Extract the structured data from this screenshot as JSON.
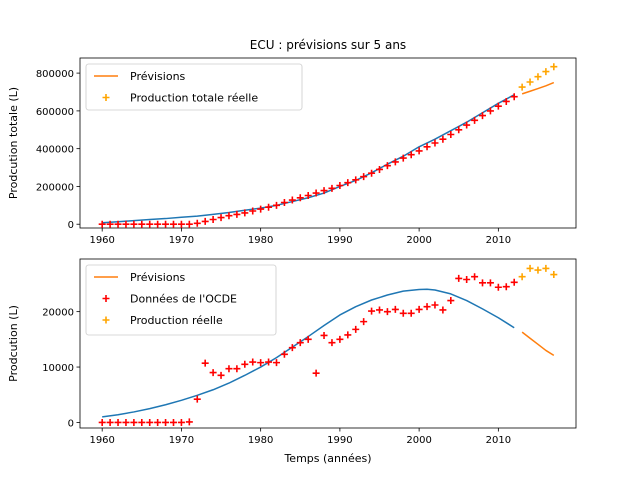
{
  "chart_data": [
    {
      "type": "line",
      "title": "ECU : prévisions sur 5 ans",
      "xlabel": "",
      "ylabel": "Prodcution totale (L)",
      "xlim": [
        1957.2,
        2019.8
      ],
      "ylim": [
        -20000,
        880000
      ],
      "xticks": [
        1960,
        1970,
        1980,
        1990,
        2000,
        2010
      ],
      "xtick_labels": [
        "1960",
        "1970",
        "1980",
        "1990",
        "2000",
        "2010"
      ],
      "yticks": [
        0,
        200000,
        400000,
        600000,
        800000
      ],
      "ytick_labels": [
        "0",
        "200000",
        "400000",
        "600000",
        "800000"
      ],
      "legend_position": "upper-left",
      "series": [
        {
          "name": "",
          "kind": "line",
          "color": "#1f77b4",
          "x": [
            1960,
            1962,
            1964,
            1966,
            1968,
            1970,
            1972,
            1974,
            1976,
            1978,
            1980,
            1982,
            1984,
            1986,
            1988,
            1990,
            1992,
            1994,
            1996,
            1998,
            2000,
            2002,
            2004,
            2006,
            2008,
            2010,
            2012
          ],
          "y": [
            8000,
            13000,
            19000,
            25000,
            30000,
            37000,
            43000,
            52000,
            62000,
            74000,
            85000,
            100000,
            120000,
            140000,
            165000,
            200000,
            232000,
            272000,
            318000,
            360000,
            410000,
            450000,
            495000,
            540000,
            590000,
            640000,
            685000
          ]
        },
        {
          "name": "Prévisions",
          "kind": "line",
          "color": "#ff7f0e",
          "x": [
            2013,
            2014,
            2015,
            2016,
            2017
          ],
          "y": [
            690000,
            704000,
            718000,
            733000,
            750000
          ]
        },
        {
          "name": "",
          "kind": "marker",
          "color": "#ff0000",
          "x": [
            1960,
            1961,
            1962,
            1963,
            1964,
            1965,
            1966,
            1967,
            1968,
            1969,
            1970,
            1971,
            1972,
            1973,
            1974,
            1975,
            1976,
            1977,
            1978,
            1979,
            1980,
            1981,
            1982,
            1983,
            1984,
            1985,
            1986,
            1987,
            1988,
            1989,
            1990,
            1991,
            1992,
            1993,
            1994,
            1995,
            1996,
            1997,
            1998,
            1999,
            2000,
            2001,
            2002,
            2003,
            2004,
            2005,
            2006,
            2007,
            2008,
            2009,
            2010,
            2011,
            2012
          ],
          "y": [
            0,
            0,
            0,
            0,
            0,
            0,
            0,
            0,
            0,
            0,
            0,
            0,
            5000,
            15000,
            25000,
            35000,
            45000,
            52000,
            60000,
            70000,
            80000,
            90000,
            100000,
            115000,
            128000,
            140000,
            152000,
            165000,
            178000,
            190000,
            205000,
            220000,
            235000,
            252000,
            270000,
            290000,
            310000,
            330000,
            350000,
            368000,
            388000,
            410000,
            430000,
            450000,
            475000,
            500000,
            525000,
            550000,
            575000,
            600000,
            625000,
            650000,
            675000
          ]
        },
        {
          "name": "Production totale réelle",
          "kind": "marker",
          "color": "#ffa500",
          "x": [
            2013,
            2014,
            2015,
            2016,
            2017
          ],
          "y": [
            726000,
            753000,
            781000,
            808000,
            834000
          ]
        }
      ]
    },
    {
      "type": "line",
      "title": "",
      "xlabel": "Temps (années)",
      "ylabel": "Prodcution (L)",
      "xlim": [
        1957.2,
        2019.8
      ],
      "ylim": [
        -1000,
        29500
      ],
      "xticks": [
        1960,
        1970,
        1980,
        1990,
        2000,
        2010
      ],
      "xtick_labels": [
        "1960",
        "1970",
        "1980",
        "1990",
        "2000",
        "2010"
      ],
      "yticks": [
        0,
        10000,
        20000
      ],
      "ytick_labels": [
        "0",
        "10000",
        "20000"
      ],
      "legend_position": "upper-left",
      "series": [
        {
          "name": "",
          "kind": "line",
          "color": "#1f77b4",
          "x": [
            1960,
            1962,
            1964,
            1966,
            1968,
            1970,
            1972,
            1974,
            1976,
            1978,
            1980,
            1982,
            1984,
            1986,
            1988,
            1990,
            1992,
            1994,
            1996,
            1998,
            2000,
            2001,
            2002,
            2004,
            2006,
            2008,
            2010,
            2012
          ],
          "y": [
            1000,
            1400,
            1900,
            2500,
            3200,
            4000,
            4900,
            5900,
            7100,
            8500,
            10000,
            11700,
            13600,
            15500,
            17500,
            19400,
            20900,
            22100,
            23000,
            23700,
            24000,
            24050,
            23900,
            23200,
            22000,
            20500,
            18900,
            17100
          ]
        },
        {
          "name": "Prévisions",
          "kind": "line",
          "color": "#ff7f0e",
          "x": [
            2013,
            2014,
            2015,
            2016,
            2017
          ],
          "y": [
            16300,
            15200,
            14100,
            13000,
            12100
          ]
        },
        {
          "name": "Données de l'OCDE",
          "kind": "marker",
          "color": "#ff0000",
          "x": [
            1960,
            1961,
            1962,
            1963,
            1964,
            1965,
            1966,
            1967,
            1968,
            1969,
            1970,
            1971,
            1972,
            1973,
            1974,
            1975,
            1976,
            1977,
            1978,
            1979,
            1980,
            1981,
            1982,
            1983,
            1984,
            1985,
            1986,
            1987,
            1988,
            1989,
            1990,
            1991,
            1992,
            1993,
            1994,
            1995,
            1996,
            1997,
            1998,
            1999,
            2000,
            2001,
            2002,
            2003,
            2004,
            2005,
            2006,
            2007,
            2008,
            2009,
            2010,
            2011,
            2012
          ],
          "y": [
            0,
            0,
            0,
            0,
            0,
            0,
            0,
            0,
            0,
            0,
            0,
            100,
            4200,
            10700,
            9000,
            8500,
            9700,
            9700,
            10500,
            10900,
            10800,
            10900,
            10800,
            12300,
            13500,
            14400,
            15000,
            8900,
            15700,
            14400,
            15000,
            15800,
            16800,
            18200,
            20100,
            20300,
            20000,
            20400,
            19700,
            19700,
            20400,
            20900,
            21200,
            20300,
            22000,
            26000,
            25800,
            26300,
            25200,
            25200,
            24400,
            24500,
            25300
          ]
        },
        {
          "name": "Production réelle",
          "kind": "marker",
          "color": "#ffa500",
          "x": [
            2013,
            2014,
            2015,
            2016,
            2017
          ],
          "y": [
            26300,
            27800,
            27500,
            27800,
            26700
          ]
        }
      ]
    }
  ]
}
